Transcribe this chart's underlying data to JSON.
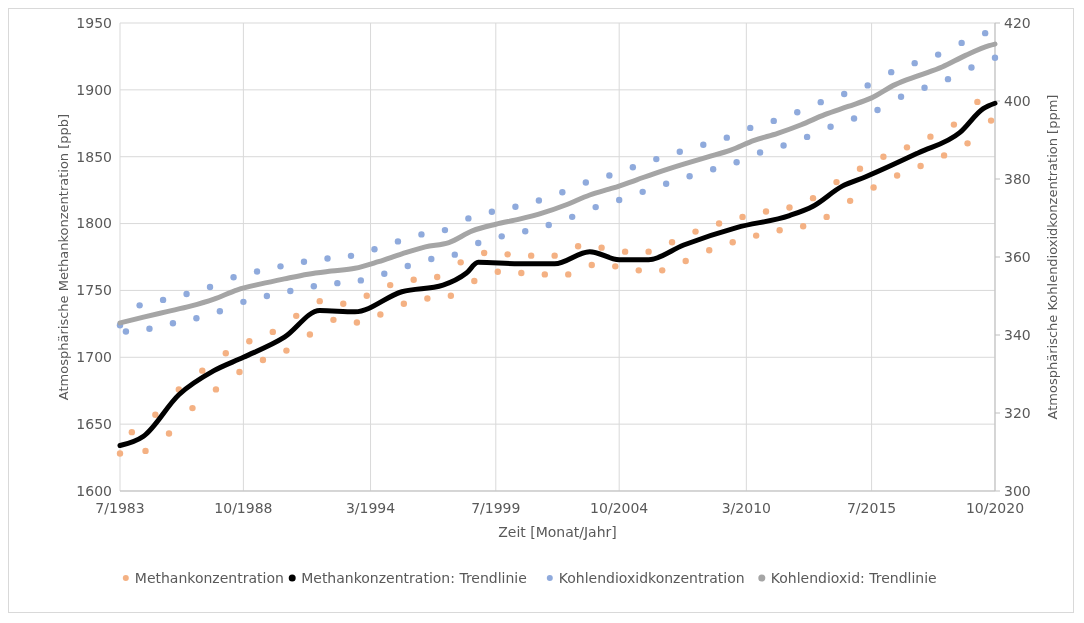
{
  "chart_data": {
    "type": "line",
    "xlabel": "Zeit [Monat/Jahr]",
    "ylabel": "Atmosphärische Methankonzentration [ppb]",
    "y2label": "Atmosphärische Kohlendioxidkonzentration [ppm]",
    "xlim": [
      "1983-07",
      "2020-10"
    ],
    "xticks": [
      {
        "value": "1983-07",
        "label": "7/1983"
      },
      {
        "value": "1988-10",
        "label": "10/1988"
      },
      {
        "value": "1994-03",
        "label": "3/1994"
      },
      {
        "value": "1999-07",
        "label": "7/1999"
      },
      {
        "value": "2004-10",
        "label": "10/2004"
      },
      {
        "value": "2010-03",
        "label": "3/2010"
      },
      {
        "value": "2015-07",
        "label": "7/2015"
      },
      {
        "value": "2020-10",
        "label": "10/2020"
      }
    ],
    "ylim": [
      1600,
      1950
    ],
    "yticks": [
      1600,
      1650,
      1700,
      1750,
      1800,
      1850,
      1900,
      1950
    ],
    "y2lim": [
      300,
      420
    ],
    "y2ticks": [
      300,
      320,
      340,
      360,
      380,
      400,
      420
    ],
    "grid": true,
    "legend": "bottom",
    "series": [
      {
        "name": "Methankonzentration",
        "type": "scatter",
        "marker": "circle",
        "axis": "y",
        "color": "#f4b183",
        "x": [
          "1983-07",
          "1984-01",
          "1984-08",
          "1985-01",
          "1985-08",
          "1986-01",
          "1986-08",
          "1987-01",
          "1987-08",
          "1988-01",
          "1988-08",
          "1989-01",
          "1989-08",
          "1990-01",
          "1990-08",
          "1991-01",
          "1991-08",
          "1992-01",
          "1992-08",
          "1993-01",
          "1993-08",
          "1994-01",
          "1994-08",
          "1995-01",
          "1995-08",
          "1996-01",
          "1996-08",
          "1997-01",
          "1997-08",
          "1998-01",
          "1998-08",
          "1999-01",
          "1999-08",
          "2000-01",
          "2000-08",
          "2001-01",
          "2001-08",
          "2002-01",
          "2002-08",
          "2003-01",
          "2003-08",
          "2004-01",
          "2004-08",
          "2005-01",
          "2005-08",
          "2006-01",
          "2006-08",
          "2007-01",
          "2007-08",
          "2008-01",
          "2008-08",
          "2009-01",
          "2009-08",
          "2010-01",
          "2010-08",
          "2011-01",
          "2011-08",
          "2012-01",
          "2012-08",
          "2013-01",
          "2013-08",
          "2014-01",
          "2014-08",
          "2015-01",
          "2015-08",
          "2016-01",
          "2016-08",
          "2017-01",
          "2017-08",
          "2018-01",
          "2018-08",
          "2019-01",
          "2019-08",
          "2020-01",
          "2020-08"
        ],
        "values": [
          1628,
          1644,
          1630,
          1657,
          1643,
          1676,
          1662,
          1690,
          1676,
          1703,
          1689,
          1712,
          1698,
          1719,
          1705,
          1731,
          1717,
          1742,
          1728,
          1740,
          1726,
          1746,
          1732,
          1754,
          1740,
          1758,
          1744,
          1760,
          1746,
          1771,
          1757,
          1778,
          1764,
          1777,
          1763,
          1776,
          1762,
          1776,
          1762,
          1783,
          1769,
          1782,
          1768,
          1779,
          1765,
          1779,
          1765,
          1786,
          1772,
          1794,
          1780,
          1800,
          1786,
          1805,
          1791,
          1809,
          1795,
          1812,
          1798,
          1819,
          1805,
          1831,
          1817,
          1841,
          1827,
          1850,
          1836,
          1857,
          1843,
          1865,
          1851,
          1874,
          1860,
          1891,
          1877
        ]
      },
      {
        "name": "Methankonzentration: Trendlinie",
        "axis": "y",
        "color": "#000000",
        "x": [
          "1983-07",
          "1984-07",
          "1986-01",
          "1987-07",
          "1988-10",
          "1990-07",
          "1992-01",
          "1993-07",
          "1995-07",
          "1997-04",
          "1998-04",
          "1998-10",
          "2000-07",
          "2002-01",
          "2003-07",
          "2004-10",
          "2006-01",
          "2007-07",
          "2009-10",
          "2012-01",
          "2013-01",
          "2014-04",
          "2015-04",
          "2017-07",
          "2019-04",
          "2020-04",
          "2020-10"
        ],
        "values": [
          1634,
          1641,
          1672,
          1690,
          1700,
          1715,
          1735,
          1734,
          1749,
          1754,
          1763,
          1771,
          1770,
          1770,
          1779,
          1773,
          1773,
          1784,
          1797,
          1806,
          1813,
          1828,
          1835,
          1853,
          1868,
          1886,
          1890
        ]
      },
      {
        "name": "Kohlendioxidkonzentration",
        "type": "scatter",
        "marker": "circle",
        "axis": "y2",
        "color": "#8faadc",
        "x": [
          "1983-07",
          "1983-10",
          "1984-05",
          "1984-10",
          "1985-05",
          "1985-10",
          "1986-05",
          "1986-10",
          "1987-05",
          "1987-10",
          "1988-05",
          "1988-10",
          "1989-05",
          "1989-10",
          "1990-05",
          "1990-10",
          "1991-05",
          "1991-10",
          "1992-05",
          "1992-10",
          "1993-05",
          "1993-10",
          "1994-05",
          "1994-10",
          "1995-05",
          "1995-10",
          "1996-05",
          "1996-10",
          "1997-05",
          "1997-10",
          "1998-05",
          "1998-10",
          "1999-05",
          "1999-10",
          "2000-05",
          "2000-10",
          "2001-05",
          "2001-10",
          "2002-05",
          "2002-10",
          "2003-05",
          "2003-10",
          "2004-05",
          "2004-10",
          "2005-05",
          "2005-10",
          "2006-05",
          "2006-10",
          "2007-05",
          "2007-10",
          "2008-05",
          "2008-10",
          "2009-05",
          "2009-10",
          "2010-05",
          "2010-10",
          "2011-05",
          "2011-10",
          "2012-05",
          "2012-10",
          "2013-05",
          "2013-10",
          "2014-05",
          "2014-10",
          "2015-05",
          "2015-10",
          "2016-05",
          "2016-10",
          "2017-05",
          "2017-10",
          "2018-05",
          "2018-10",
          "2019-05",
          "2019-10",
          "2020-05",
          "2020-10"
        ],
        "values": [
          342.5,
          340.9,
          347.6,
          341.6,
          349.0,
          343.0,
          350.5,
          344.3,
          352.3,
          346.1,
          354.8,
          348.5,
          356.3,
          350.0,
          357.6,
          351.3,
          358.8,
          352.5,
          359.6,
          353.3,
          360.3,
          354.0,
          362.0,
          355.7,
          364.0,
          357.7,
          365.8,
          359.5,
          366.9,
          360.6,
          369.9,
          363.6,
          371.6,
          365.3,
          372.9,
          366.6,
          374.5,
          368.2,
          376.6,
          370.3,
          379.1,
          372.8,
          380.9,
          374.6,
          383.0,
          376.7,
          385.1,
          378.8,
          387.0,
          380.7,
          388.8,
          382.5,
          390.6,
          384.3,
          393.1,
          386.8,
          394.9,
          388.6,
          397.1,
          390.8,
          399.7,
          393.4,
          401.8,
          395.5,
          404.0,
          397.7,
          407.4,
          401.1,
          409.7,
          403.4,
          411.9,
          405.6,
          414.9,
          408.6,
          417.4,
          411.1
        ]
      },
      {
        "name": "Kohlendioxid: Trendlinie",
        "axis": "y2",
        "color": "#a5a5a5",
        "x": [
          "1983-07",
          "1984-07",
          "1985-07",
          "1986-07",
          "1987-07",
          "1988-07",
          "1989-07",
          "1990-07",
          "1991-07",
          "1992-07",
          "1993-07",
          "1994-07",
          "1995-07",
          "1996-07",
          "1997-07",
          "1998-07",
          "1999-07",
          "2000-07",
          "2001-07",
          "2002-07",
          "2003-07",
          "2004-07",
          "2005-07",
          "2006-07",
          "2007-07",
          "2008-07",
          "2009-07",
          "2010-07",
          "2011-07",
          "2012-07",
          "2013-07",
          "2014-07",
          "2015-07",
          "2016-07",
          "2017-07",
          "2018-07",
          "2019-07",
          "2020-07",
          "2020-10"
        ],
        "values": [
          343.1,
          344.6,
          346.0,
          347.4,
          349.2,
          351.6,
          353.1,
          354.4,
          355.6,
          356.4,
          357.1,
          358.8,
          360.8,
          362.6,
          363.7,
          366.7,
          368.4,
          369.7,
          371.3,
          373.4,
          375.9,
          377.7,
          379.8,
          381.9,
          383.8,
          385.6,
          387.4,
          389.9,
          391.7,
          393.9,
          396.5,
          398.6,
          400.8,
          404.2,
          406.5,
          408.7,
          411.7,
          414.2,
          414.6
        ]
      }
    ]
  }
}
